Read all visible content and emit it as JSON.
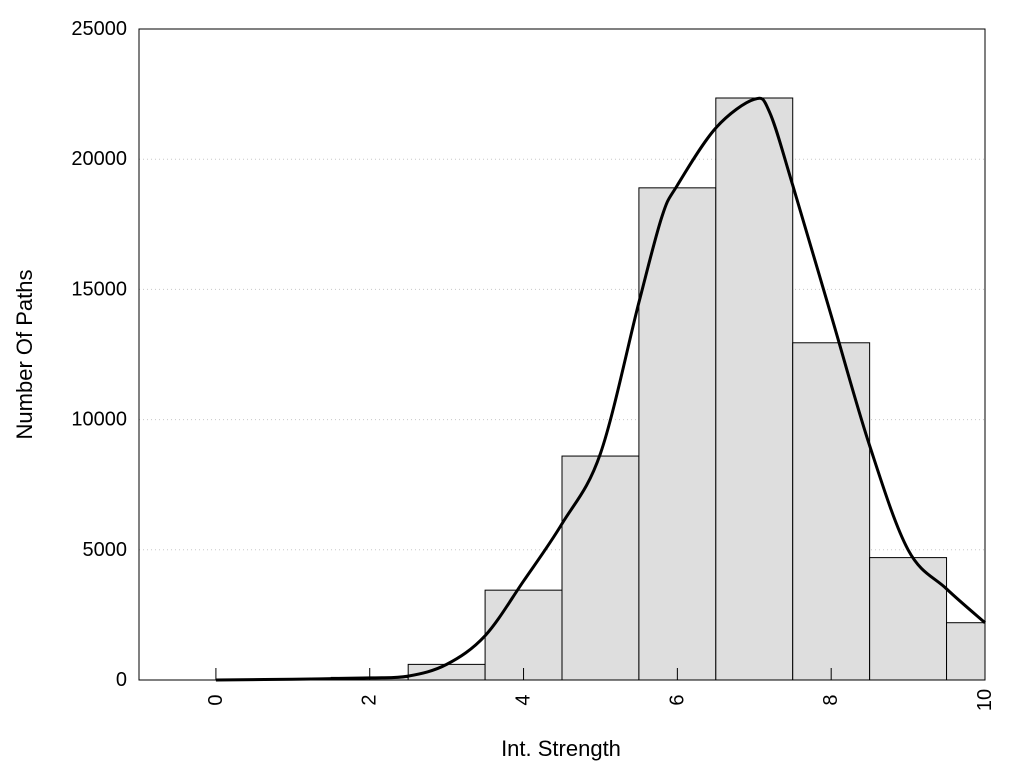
{
  "chart_data": {
    "type": "bar",
    "title": "",
    "xlabel": "Int. Strength",
    "ylabel": "Number Of Paths",
    "xlim": [
      -1,
      10
    ],
    "ylim": [
      0,
      25000
    ],
    "x_ticks": [
      0,
      2,
      4,
      6,
      8,
      10
    ],
    "x_tick_labels": [
      "0",
      "2",
      "4",
      "6",
      "8",
      "10"
    ],
    "y_ticks": [
      0,
      5000,
      10000,
      15000,
      20000,
      25000
    ],
    "y_tick_labels": [
      "0",
      "5000",
      "10000",
      "15000",
      "20000",
      "25000"
    ],
    "grid": "horizontal dotted",
    "legend": "none",
    "bar_width": 1,
    "bar_color": "#dedede",
    "series": [
      {
        "type": "bar",
        "x": [
          0,
          1,
          2,
          3,
          4,
          5,
          6,
          7,
          8,
          9,
          10
        ],
        "values": [
          0,
          0,
          100,
          600,
          3450,
          8600,
          18900,
          22350,
          12950,
          4700,
          2200
        ]
      },
      {
        "type": "line",
        "x": [
          0,
          1,
          2,
          2.5,
          3,
          3.5,
          4,
          4.5,
          5,
          5.5,
          5.8,
          6,
          6.5,
          7,
          7.2,
          7.5,
          8,
          8.5,
          9,
          9.5,
          10
        ],
        "values": [
          0,
          30,
          80,
          150,
          600,
          1700,
          3800,
          6000,
          8700,
          14500,
          17800,
          19000,
          21200,
          22300,
          21800,
          19000,
          14000,
          9000,
          5000,
          3500,
          2200
        ]
      }
    ]
  }
}
